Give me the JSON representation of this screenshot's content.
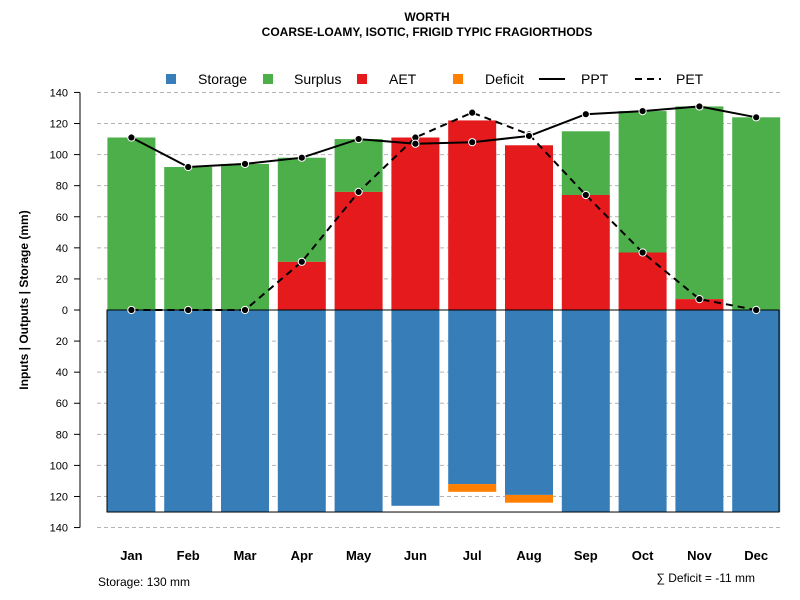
{
  "chart_data": {
    "type": "bar",
    "title": "WORTH",
    "subtitle": "COARSE-LOAMY, ISOTIC, FRIGID TYPIC FRAGIORTHODS",
    "ylabel": "Inputs | Outputs | Storage    (mm)",
    "xlabel": "",
    "ylim": [
      -140,
      140
    ],
    "yticks": [
      140,
      120,
      100,
      80,
      60,
      40,
      20,
      0,
      -20,
      -40,
      -60,
      -80,
      -100,
      -120,
      -140
    ],
    "ytick_labels": [
      "140",
      "120",
      "100",
      "80",
      "60",
      "40",
      "20",
      "0",
      "20",
      "40",
      "60",
      "80",
      "100",
      "120",
      "140"
    ],
    "categories": [
      "Jan",
      "Feb",
      "Mar",
      "Apr",
      "May",
      "Jun",
      "Jul",
      "Aug",
      "Sep",
      "Oct",
      "Nov",
      "Dec"
    ],
    "legend": {
      "position": "top",
      "entries": [
        {
          "label": "Storage",
          "kind": "square",
          "color": "#377EB8"
        },
        {
          "label": "Surplus",
          "kind": "square",
          "color": "#4DAF4A"
        },
        {
          "label": "AET",
          "kind": "square",
          "color": "#E41A1C"
        },
        {
          "label": "Deficit",
          "kind": "square",
          "color": "#FF7F00"
        },
        {
          "label": "PPT",
          "kind": "solid-line",
          "color": "#000000"
        },
        {
          "label": "PET",
          "kind": "dashed-line",
          "color": "#000000"
        }
      ]
    },
    "series": [
      {
        "name": "AET",
        "color": "#E41A1C",
        "values": [
          0,
          0,
          0,
          31,
          76,
          111,
          122,
          106,
          74,
          37,
          7,
          0
        ]
      },
      {
        "name": "Surplus",
        "color": "#4DAF4A",
        "values": [
          111,
          92,
          94,
          67,
          34,
          0,
          0,
          0,
          41,
          91,
          124,
          124
        ]
      },
      {
        "name": "Storage",
        "color": "#377EB8",
        "values": [
          130,
          130,
          130,
          130,
          130,
          126,
          112,
          119,
          130,
          130,
          130,
          130
        ]
      },
      {
        "name": "Deficit",
        "color": "#FF7F00",
        "values": [
          0,
          0,
          0,
          0,
          0,
          0,
          5,
          5,
          0,
          0,
          0,
          0
        ]
      },
      {
        "name": "PPT",
        "color": "#000000",
        "values": [
          111,
          92,
          94,
          98,
          110,
          107,
          108,
          112,
          126,
          128,
          131,
          124
        ]
      },
      {
        "name": "PET",
        "color": "#000000",
        "values": [
          0,
          0,
          0,
          31,
          76,
          111,
          127,
          113,
          74,
          37,
          7,
          0
        ]
      }
    ],
    "grid": true,
    "storage_capacity": 130,
    "footer_left": "Storage: 130 mm",
    "footer_right": "∑ Deficit = -11 mm"
  }
}
